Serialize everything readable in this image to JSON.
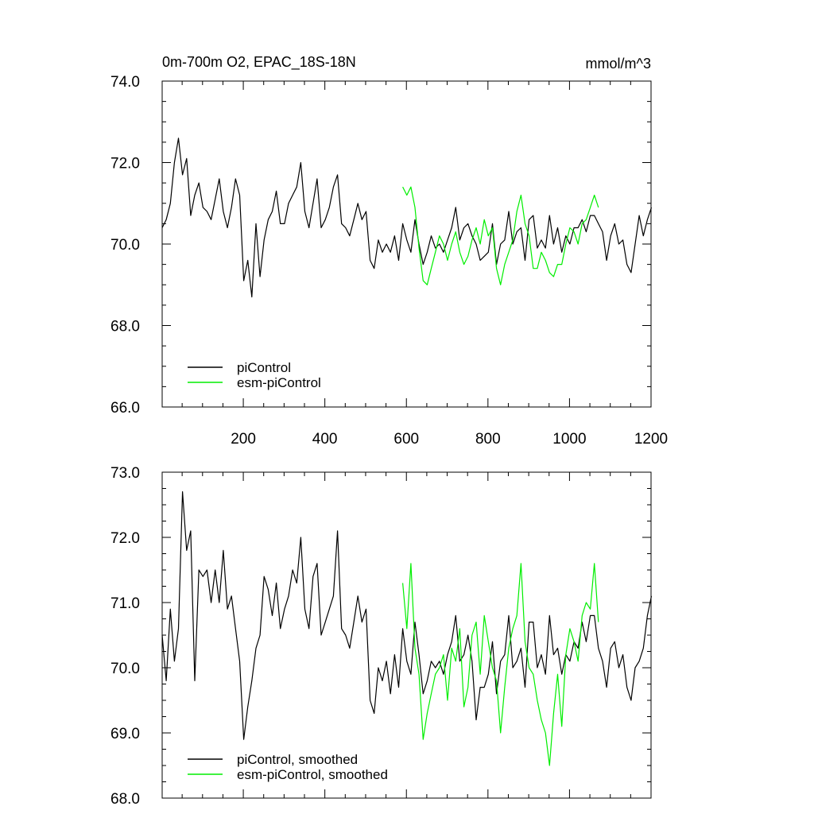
{
  "chart_data": [
    {
      "type": "line",
      "title": "0m-700m O2, EPAC_18S-18N",
      "units": "mmol/m^3",
      "xlabel": "",
      "ylabel": "",
      "xlim": [
        1,
        1200
      ],
      "ylim": [
        66,
        74
      ],
      "xticks": [
        200,
        400,
        600,
        800,
        1000,
        1200
      ],
      "xtick_labels": [
        "200",
        "400",
        "600",
        "800",
        "1000",
        "1200"
      ],
      "yticks": [
        66,
        68,
        70,
        72,
        74
      ],
      "ytick_labels": [
        "66.0",
        "68.0",
        "70.0",
        "72.0",
        "74.0"
      ],
      "legend_position": "bottom-left",
      "series": [
        {
          "name": "piControl",
          "color": "#000000",
          "x_start": 1,
          "x_step": 10,
          "values": [
            70.4,
            70.6,
            71.0,
            72.0,
            72.6,
            71.7,
            72.1,
            70.7,
            71.2,
            71.5,
            70.9,
            70.8,
            70.6,
            71.1,
            71.6,
            70.8,
            70.4,
            70.9,
            71.6,
            71.2,
            69.1,
            69.6,
            68.7,
            70.5,
            69.2,
            70.1,
            70.6,
            70.8,
            71.3,
            70.5,
            70.5,
            71.0,
            71.2,
            71.4,
            72.0,
            70.8,
            70.4,
            71.0,
            71.6,
            70.4,
            70.6,
            70.9,
            71.4,
            71.7,
            70.5,
            70.4,
            70.2,
            70.6,
            71.0,
            70.6,
            70.8,
            69.6,
            69.4,
            70.1,
            69.8,
            70.0,
            69.8,
            70.2,
            69.6,
            70.5,
            70.1,
            69.8,
            70.6,
            70.0,
            69.5,
            69.8,
            70.2,
            69.9,
            70.0,
            69.8,
            70.1,
            70.4,
            70.9,
            70.1,
            70.4,
            70.5,
            70.2,
            70.0,
            69.6,
            69.7,
            69.8,
            70.5,
            69.5,
            70.0,
            70.1,
            70.8,
            70.0,
            70.3,
            70.4,
            69.6,
            70.6,
            70.7,
            69.9,
            70.1,
            69.9,
            70.7,
            70.0,
            70.4,
            69.8,
            70.2,
            70.0,
            70.4,
            70.4,
            70.6,
            70.3,
            70.7,
            70.7,
            70.5,
            70.3,
            69.6,
            70.2,
            70.5,
            70.0,
            70.1,
            69.5,
            69.3,
            70.0,
            70.7,
            70.2,
            70.6,
            70.9
          ]
        },
        {
          "name": "esm-piControl",
          "color": "#00ee00",
          "x_start": 591,
          "x_step": 10,
          "values": [
            71.4,
            71.2,
            71.4,
            70.9,
            69.9,
            69.1,
            69.0,
            69.4,
            69.8,
            70.2,
            70.0,
            69.6,
            70.0,
            70.3,
            69.8,
            69.5,
            69.7,
            70.1,
            70.4,
            70.0,
            70.6,
            70.2,
            70.4,
            69.4,
            69.0,
            69.5,
            69.8,
            70.1,
            70.8,
            71.2,
            70.5,
            70.2,
            69.4,
            69.4,
            69.8,
            69.6,
            69.3,
            69.2,
            69.5,
            69.5,
            70.0,
            70.4,
            70.3,
            70.0,
            70.5,
            70.6,
            70.9,
            71.2,
            70.9
          ]
        }
      ]
    },
    {
      "type": "line",
      "title": "",
      "xlabel": "",
      "ylabel": "",
      "xlim": [
        1,
        1200
      ],
      "ylim": [
        68,
        73
      ],
      "xticks": [
        200,
        400,
        600,
        800,
        1000,
        1200
      ],
      "yticks": [
        68,
        69,
        70,
        71,
        72,
        73
      ],
      "ytick_labels": [
        "68.0",
        "69.0",
        "70.0",
        "71.0",
        "72.0",
        "73.0"
      ],
      "legend_position": "bottom-left",
      "series": [
        {
          "name": "piControl, smoothed",
          "color": "#000000",
          "x_start": 1,
          "x_step": 10,
          "values": [
            70.5,
            69.8,
            70.9,
            70.1,
            70.6,
            72.7,
            71.8,
            72.1,
            69.8,
            71.5,
            71.4,
            71.5,
            71.0,
            71.5,
            71.0,
            71.8,
            70.9,
            71.1,
            70.6,
            70.1,
            68.9,
            69.4,
            69.8,
            70.3,
            70.5,
            71.4,
            71.2,
            70.8,
            71.3,
            70.6,
            70.9,
            71.1,
            71.5,
            71.3,
            72.0,
            70.9,
            70.6,
            71.4,
            71.6,
            70.5,
            70.7,
            70.9,
            71.1,
            72.1,
            70.6,
            70.5,
            70.3,
            70.7,
            71.1,
            70.7,
            70.9,
            69.5,
            69.3,
            70.0,
            69.8,
            70.1,
            69.6,
            70.2,
            69.7,
            70.6,
            70.1,
            69.9,
            70.7,
            70.2,
            69.6,
            69.8,
            70.1,
            70.0,
            70.1,
            69.9,
            70.2,
            70.4,
            70.8,
            70.1,
            70.2,
            70.5,
            70.1,
            69.2,
            69.7,
            69.7,
            69.9,
            70.4,
            69.6,
            70.1,
            70.2,
            70.8,
            70.0,
            70.1,
            70.3,
            69.7,
            70.7,
            70.7,
            70.0,
            70.2,
            69.9,
            70.8,
            70.2,
            70.3,
            69.9,
            70.2,
            70.1,
            70.4,
            70.3,
            70.7,
            70.4,
            70.8,
            70.8,
            70.3,
            70.1,
            69.7,
            70.3,
            70.4,
            70.0,
            70.2,
            69.7,
            69.5,
            70.0,
            70.1,
            70.3,
            70.8,
            71.1
          ]
        },
        {
          "name": "esm-piControl, smoothed",
          "color": "#00ee00",
          "x_start": 591,
          "x_step": 10,
          "values": [
            71.3,
            70.6,
            71.6,
            70.3,
            69.9,
            68.9,
            69.3,
            69.6,
            69.9,
            70.0,
            70.2,
            69.5,
            70.3,
            70.1,
            70.6,
            69.4,
            69.7,
            70.5,
            70.7,
            69.9,
            70.8,
            70.4,
            70.0,
            69.8,
            69.0,
            69.7,
            70.3,
            70.6,
            70.8,
            71.6,
            70.4,
            70.0,
            69.9,
            69.5,
            69.2,
            69.0,
            68.5,
            69.3,
            69.9,
            69.1,
            70.2,
            70.6,
            70.4,
            70.1,
            70.8,
            71.0,
            70.9,
            71.6,
            70.7
          ]
        }
      ]
    }
  ]
}
